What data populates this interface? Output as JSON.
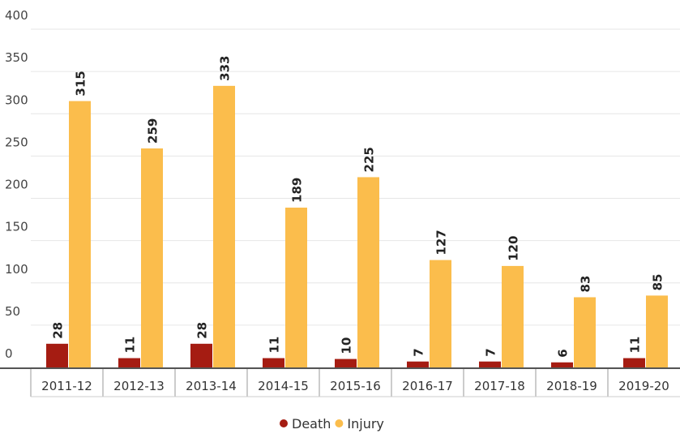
{
  "chart_data": {
    "type": "bar",
    "categories": [
      "2011-12",
      "2012-13",
      "2013-14",
      "2014-15",
      "2015-16",
      "2016-17",
      "2017-18",
      "2018-19",
      "2019-20"
    ],
    "series": [
      {
        "name": "Death",
        "color": "#a51c12",
        "values": [
          28,
          11,
          28,
          11,
          10,
          7,
          7,
          6,
          11
        ]
      },
      {
        "name": "Injury",
        "color": "#fbbd4c",
        "values": [
          315,
          259,
          333,
          189,
          225,
          127,
          120,
          83,
          85
        ]
      }
    ],
    "ylim": [
      0,
      400
    ],
    "yticks": [
      0,
      50,
      100,
      150,
      200,
      250,
      300,
      350,
      400
    ],
    "grid": true,
    "legend": "bottom"
  }
}
